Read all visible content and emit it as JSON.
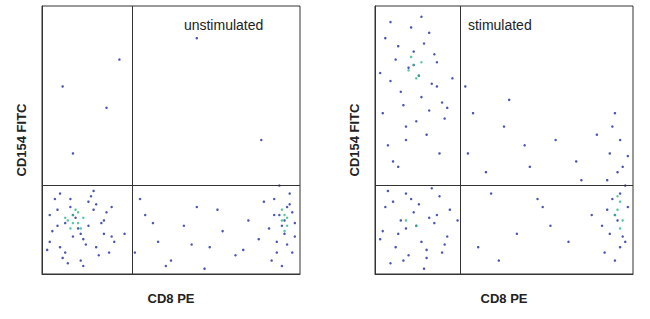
{
  "chart_data": [
    {
      "type": "scatter",
      "annotation": "unstimulated",
      "x_label": "CD8 PE",
      "y_label": "CD154 FITC",
      "xlim": [
        0,
        100
      ],
      "ylim": [
        0,
        100
      ],
      "tick_labels": false,
      "grid": false,
      "gate": {
        "x": 35,
        "y": 33
      },
      "series": [
        {
          "color": "#1e2aa0",
          "x": [
            3,
            6,
            9,
            12,
            15,
            18,
            21,
            24,
            27,
            5,
            8,
            11,
            14,
            17,
            20,
            23,
            26,
            4,
            7,
            10,
            13,
            16,
            19,
            22,
            25,
            28,
            2,
            6,
            9,
            12,
            15,
            18,
            21,
            24,
            3,
            7,
            11,
            16,
            20,
            27
          ],
          "values": [
            12,
            18,
            8,
            22,
            15,
            27,
            10,
            20,
            14,
            28,
            6,
            25,
            17,
            11,
            24,
            19,
            8,
            16,
            30,
            4,
            21,
            13,
            29,
            7,
            23,
            12,
            9,
            24,
            19,
            14,
            5,
            18,
            26,
            15,
            22,
            10,
            28,
            3,
            31,
            25
          ]
        },
        {
          "color": "#1e2aa0",
          "x": [
            32,
            36,
            40,
            45,
            50,
            55,
            60,
            65,
            70,
            75,
            80,
            84,
            38,
            48,
            58,
            68,
            78,
            43,
            63,
            86
          ],
          "values": [
            15,
            8,
            22,
            12,
            5,
            18,
            25,
            10,
            16,
            7,
            20,
            13,
            28,
            3,
            11,
            24,
            9,
            19,
            2,
            27
          ]
        },
        {
          "color": "#1e2aa0",
          "x": [
            89,
            91,
            93,
            95,
            97,
            90,
            92,
            94,
            96,
            98,
            88,
            91,
            93,
            95,
            97,
            92,
            94,
            96,
            90,
            98
          ],
          "values": [
            5,
            12,
            18,
            25,
            8,
            28,
            22,
            15,
            30,
            19,
            17,
            8,
            3,
            11,
            23,
            33,
            20,
            26,
            22,
            14
          ]
        },
        {
          "color": "#1e2aa0",
          "x": [
            25,
            8,
            30,
            60,
            12,
            85
          ],
          "values": [
            62,
            70,
            80,
            88,
            45,
            50
          ]
        },
        {
          "color": "#2fb98a",
          "x": [
            10,
            12,
            14,
            16,
            11,
            13,
            15,
            9,
            12,
            14,
            93,
            94,
            95,
            94,
            93,
            95
          ],
          "values": [
            20,
            22,
            19,
            21,
            17,
            24,
            17,
            21,
            19,
            23,
            20,
            22,
            18,
            16,
            24,
            21
          ]
        }
      ]
    },
    {
      "type": "scatter",
      "annotation": "stimulated",
      "x_label": "CD8 PE",
      "y_label": "CD154 FITC",
      "xlim": [
        0,
        100
      ],
      "ylim": [
        0,
        100
      ],
      "tick_labels": false,
      "grid": false,
      "gate": {
        "x": 33,
        "y": 33
      },
      "series": [
        {
          "color": "#1e2aa0",
          "x": [
            3,
            6,
            9,
            12,
            15,
            18,
            21,
            24,
            27,
            5,
            8,
            11,
            14,
            17,
            20,
            23,
            26,
            4,
            7,
            10,
            13,
            16,
            19,
            22,
            25,
            28,
            2,
            6,
            12,
            18,
            24,
            9,
            15,
            21,
            30
          ],
          "values": [
            60,
            72,
            85,
            55,
            78,
            66,
            90,
            70,
            58,
            48,
            80,
            63,
            92,
            74,
            52,
            82,
            64,
            88,
            42,
            68,
            77,
            57,
            86,
            71,
            45,
            62,
            75,
            94,
            50,
            96,
            79,
            40,
            83,
            61,
            73
          ]
        },
        {
          "color": "#1e2aa0",
          "x": [
            4,
            8,
            12,
            16,
            20,
            24,
            28,
            6,
            10,
            14,
            18,
            22,
            26,
            3,
            7,
            11,
            15,
            19,
            23,
            27,
            5,
            9,
            13,
            17,
            21,
            25,
            2,
            29,
            12,
            20
          ],
          "values": [
            25,
            10,
            30,
            18,
            6,
            22,
            14,
            4,
            20,
            28,
            12,
            32,
            8,
            16,
            27,
            5,
            23,
            2,
            19,
            11,
            31,
            15,
            7,
            26,
            21,
            29,
            13,
            24,
            17,
            9
          ]
        },
        {
          "color": "#1e2aa0",
          "x": [
            32,
            36,
            40,
            45,
            50,
            55,
            60,
            65,
            70,
            75,
            80,
            84,
            38,
            48,
            58,
            68,
            78,
            43,
            63,
            86,
            35,
            52
          ],
          "values": [
            20,
            45,
            10,
            30,
            55,
            15,
            40,
            25,
            50,
            12,
            35,
            22,
            60,
            5,
            48,
            18,
            42,
            38,
            28,
            52,
            70,
            65
          ]
        },
        {
          "color": "#1e2aa0",
          "x": [
            89,
            91,
            93,
            95,
            97,
            90,
            92,
            94,
            96,
            98,
            88,
            91,
            93,
            95,
            97,
            92,
            94,
            96,
            90,
            98,
            93,
            95
          ],
          "values": [
            8,
            15,
            22,
            30,
            12,
            35,
            28,
            20,
            40,
            25,
            18,
            45,
            5,
            50,
            33,
            55,
            38,
            14,
            24,
            44,
            60,
            10
          ]
        },
        {
          "color": "#2fb98a",
          "x": [
            13,
            15,
            17,
            14,
            16,
            18,
            94,
            95,
            93,
            96,
            94,
            95,
            12,
            16
          ],
          "values": [
            76,
            78,
            74,
            81,
            73,
            79,
            24,
            27,
            22,
            20,
            29,
            17,
            20,
            18
          ]
        }
      ]
    }
  ]
}
